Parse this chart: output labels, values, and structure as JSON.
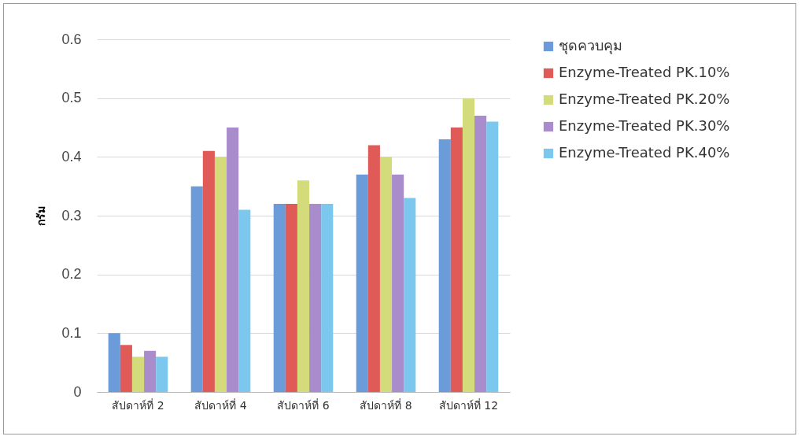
{
  "chart_data": {
    "type": "bar",
    "ylabel": "กรัม",
    "categories": [
      "สัปดาห์ที่ 2",
      "สัปดาห์ที่ 4",
      "สัปดาห์ที่ 6",
      "สัปดาห์ที่ 8",
      "สัปดาห์ที่ 12"
    ],
    "series": [
      {
        "name": "ชุดควบคุม",
        "color": "#6b9bd9",
        "values": [
          0.1,
          0.35,
          0.32,
          0.37,
          0.43
        ]
      },
      {
        "name": "Enzyme-Treated PK.10%",
        "color": "#e05a58",
        "values": [
          0.08,
          0.41,
          0.32,
          0.42,
          0.45
        ]
      },
      {
        "name": "Enzyme-Treated PK.20%",
        "color": "#d3db7a",
        "values": [
          0.06,
          0.4,
          0.36,
          0.4,
          0.5
        ]
      },
      {
        "name": "Enzyme-Treated PK.30%",
        "color": "#a98ccb",
        "values": [
          0.07,
          0.45,
          0.32,
          0.37,
          0.47
        ]
      },
      {
        "name": "Enzyme-Treated PK.40%",
        "color": "#7cc7ee",
        "values": [
          0.06,
          0.31,
          0.32,
          0.33,
          0.46
        ]
      }
    ],
    "ylim": [
      0,
      0.6
    ],
    "yticks": [
      0,
      0.1,
      0.2,
      0.3,
      0.4,
      0.5,
      0.6
    ],
    "grid": "y",
    "legend": "right"
  }
}
